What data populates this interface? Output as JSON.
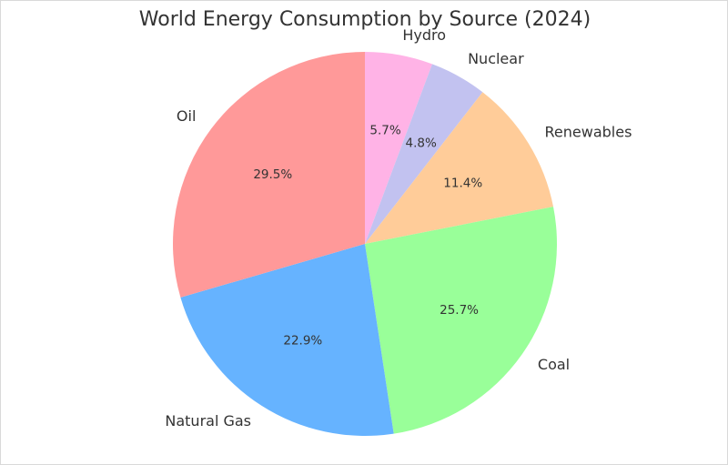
{
  "chart_data": {
    "type": "pie",
    "title": "World Energy Consumption by Source (2024)",
    "start_angle": 90,
    "direction": "clockwise",
    "slices": [
      {
        "label": "Hydro",
        "value": 5.7,
        "display": "5.7%",
        "color": "#ffb3e6"
      },
      {
        "label": "Nuclear",
        "value": 4.8,
        "display": "4.8%",
        "color": "#c2c2f0"
      },
      {
        "label": "Renewables",
        "value": 11.4,
        "display": "11.4%",
        "color": "#ffcc99"
      },
      {
        "label": "Coal",
        "value": 25.7,
        "display": "25.7%",
        "color": "#99ff99"
      },
      {
        "label": "Natural Gas",
        "value": 22.9,
        "display": "22.9%",
        "color": "#66b3ff"
      },
      {
        "label": "Oil",
        "value": 29.5,
        "display": "29.5%",
        "color": "#ff9999"
      }
    ]
  }
}
